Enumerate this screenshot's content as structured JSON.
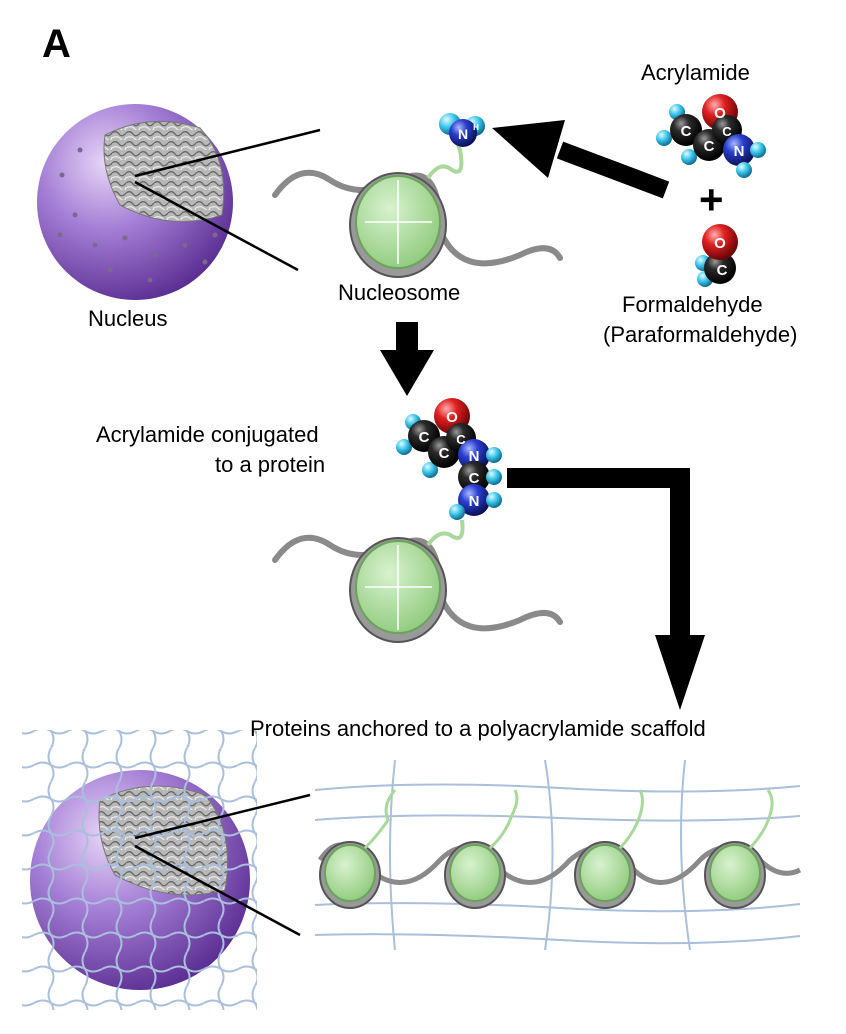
{
  "panel_label": "A",
  "labels": {
    "nucleus": "Nucleus",
    "nucleosome": "Nucleosome",
    "acrylamide": "Acrylamide",
    "plus": "+",
    "formaldehyde": "Formaldehyde",
    "paraformaldehyde": "(Paraformaldehyde)",
    "conjugated_line1": "Acrylamide conjugated",
    "conjugated_line2": "to a protein",
    "scaffold": "Proteins anchored to a polyacrylamide scaffold"
  },
  "atoms": {
    "carbon": "C",
    "oxygen": "O",
    "nitrogen": "N",
    "hydrogen": "H"
  },
  "colors": {
    "nucleus_purple": "#8a5cc4",
    "histone_green": "#a8d89a",
    "dna_gray": "#9a9a9a",
    "linker_green": "#a8d89a",
    "oxygen_red": "#c4151c",
    "nitrogen_blue": "#1b2fa8",
    "hydrogen_cyan": "#38bfe6",
    "carbon_black": "#1a1a1a",
    "mesh_blue": "#a9bfdc"
  }
}
